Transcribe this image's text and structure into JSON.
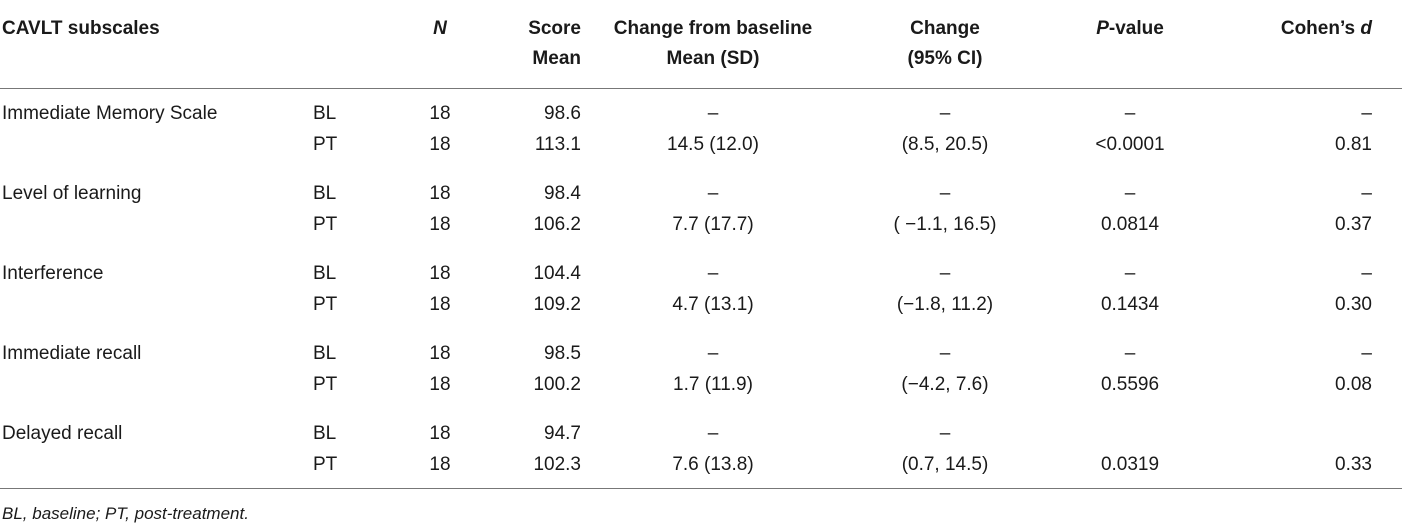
{
  "table": {
    "headers": {
      "subscales": "CAVLT subscales",
      "n": "N",
      "score_line1": "Score",
      "score_line2": "Mean",
      "change_line1": "Change from baseline",
      "change_line2": "Mean (SD)",
      "ci_line1": "Change",
      "ci_line2": "(95% CI)",
      "p_italic": "P",
      "p_rest": "-value",
      "d_prefix": "Cohen’s ",
      "d_italic": "d"
    },
    "groups": [
      {
        "name": "Immediate Memory Scale",
        "rows": [
          {
            "grp": "BL",
            "n": "18",
            "score": "98.6",
            "change": "–",
            "ci": "–",
            "p": "–",
            "d": "–"
          },
          {
            "grp": "PT",
            "n": "18",
            "score": "113.1",
            "change": "14.5 (12.0)",
            "ci": "(8.5, 20.5)",
            "p": "<0.0001",
            "d": "0.81"
          }
        ]
      },
      {
        "name": "Level of learning",
        "rows": [
          {
            "grp": "BL",
            "n": "18",
            "score": "98.4",
            "change": "–",
            "ci": "–",
            "p": "–",
            "d": "–"
          },
          {
            "grp": "PT",
            "n": "18",
            "score": "106.2",
            "change": "7.7 (17.7)",
            "ci": "( −1.1, 16.5)",
            "p": "0.0814",
            "d": "0.37"
          }
        ]
      },
      {
        "name": "Interference",
        "rows": [
          {
            "grp": "BL",
            "n": "18",
            "score": "104.4",
            "change": "–",
            "ci": "–",
            "p": "–",
            "d": "–"
          },
          {
            "grp": "PT",
            "n": "18",
            "score": "109.2",
            "change": "4.7 (13.1)",
            "ci": "(−1.8, 11.2)",
            "p": "0.1434",
            "d": "0.30"
          }
        ]
      },
      {
        "name": "Immediate recall",
        "rows": [
          {
            "grp": "BL",
            "n": "18",
            "score": "98.5",
            "change": "–",
            "ci": "–",
            "p": "–",
            "d": "–"
          },
          {
            "grp": "PT",
            "n": "18",
            "score": "100.2",
            "change": "1.7 (11.9)",
            "ci": "(−4.2, 7.6)",
            "p": "0.5596",
            "d": "0.08"
          }
        ]
      },
      {
        "name": "Delayed recall",
        "rows": [
          {
            "grp": "BL",
            "n": "18",
            "score": "94.7",
            "change": "–",
            "ci": "–",
            "p": "",
            "d": ""
          },
          {
            "grp": "PT",
            "n": "18",
            "score": "102.3",
            "change": "7.6 (13.8)",
            "ci": "(0.7, 14.5)",
            "p": "0.0319",
            "d": "0.33"
          }
        ]
      }
    ]
  },
  "footnote": "BL, baseline; PT, post-treatment."
}
